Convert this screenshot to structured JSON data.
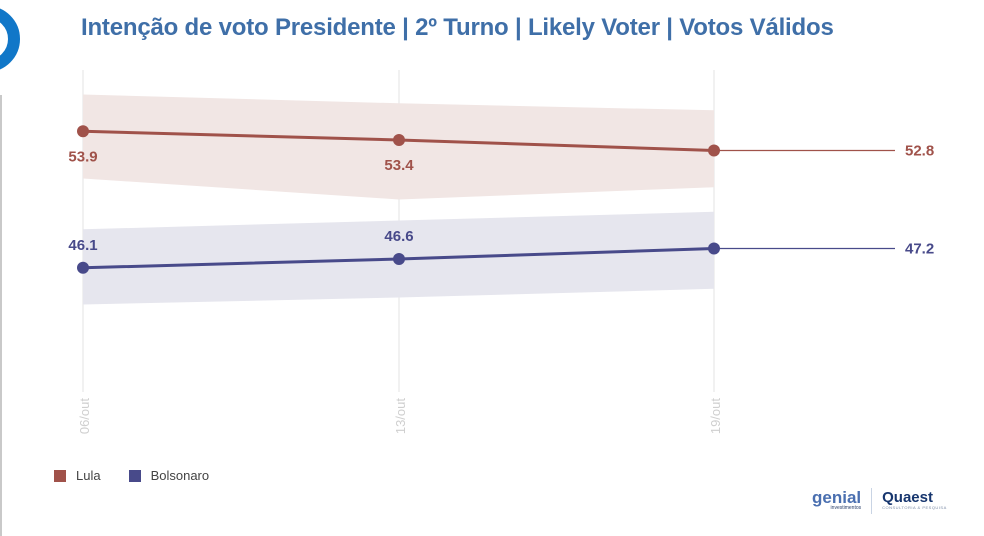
{
  "title": "Intenção de voto Presidente | 2º Turno | Likely Voter | Votos Válidos",
  "chart_data": {
    "type": "line",
    "title": "Intenção de voto Presidente | 2º Turno | Likely Voter | Votos Válidos",
    "xlabel": "",
    "ylabel": "",
    "categories": [
      "06/out",
      "13/out",
      "19/out"
    ],
    "ylim": [
      39,
      59
    ],
    "grid": "vertical",
    "legend_position": "bottom-left",
    "series": [
      {
        "name": "Lula",
        "color": "#a0524a",
        "band_color": "#f1e6e4",
        "values": [
          53.9,
          53.4,
          52.8
        ],
        "labels": [
          "53.9",
          "53.4",
          "52.8"
        ],
        "band_low": [
          51.2,
          50.0,
          50.7
        ],
        "band_high": [
          56.0,
          55.5,
          55.1
        ]
      },
      {
        "name": "Bolsonaro",
        "color": "#484a8a",
        "band_color": "#e6e6ee",
        "values": [
          46.1,
          46.6,
          47.2
        ],
        "labels": [
          "46.1",
          "46.6",
          "47.2"
        ],
        "band_low": [
          44.0,
          44.4,
          44.9
        ],
        "band_high": [
          48.3,
          48.8,
          49.3
        ]
      }
    ]
  },
  "logos": {
    "genial": "genial",
    "genial_sub": "investimentos",
    "quaest": "Quaest",
    "quaest_sub": "CONSULTORIA & PESQUISA"
  }
}
